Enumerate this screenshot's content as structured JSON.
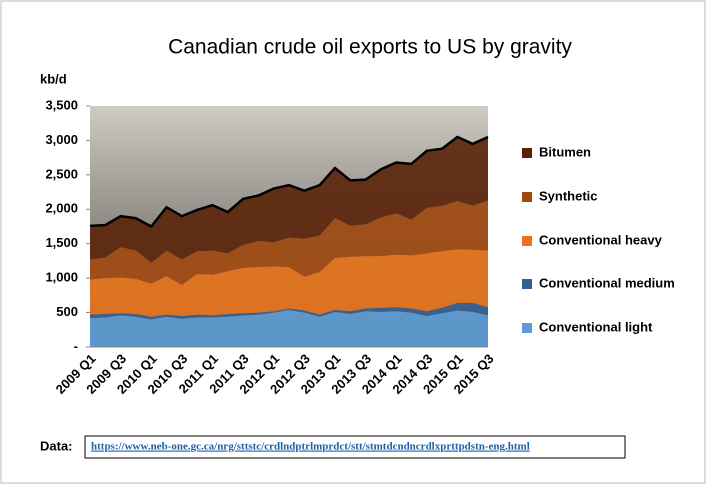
{
  "chart_data": {
    "type": "area",
    "stacked": true,
    "title": "Canadian crude oil exports to US by gravity",
    "y_label": "kb/d",
    "categories": [
      "2009 Q1",
      null,
      "2009 Q3",
      null,
      "2010 Q1",
      null,
      "2010 Q3",
      null,
      "2011 Q1",
      null,
      "2011 Q3",
      null,
      "2012 Q1",
      null,
      "2012 Q3",
      null,
      "2013 Q1",
      null,
      "2013 Q3",
      null,
      "2014 Q1",
      null,
      "2014 Q3",
      null,
      "2015 Q1",
      null,
      "2015 Q3"
    ],
    "series": [
      {
        "name": "Conventional light",
        "color": "#5b9bd5",
        "values": [
          420,
          430,
          460,
          440,
          400,
          440,
          410,
          430,
          430,
          440,
          460,
          470,
          500,
          540,
          500,
          440,
          510,
          480,
          520,
          510,
          520,
          500,
          450,
          490,
          530,
          510,
          460
        ]
      },
      {
        "name": "Conventional medium",
        "color": "#335f91",
        "values": [
          50,
          50,
          30,
          40,
          40,
          30,
          40,
          40,
          30,
          40,
          30,
          30,
          20,
          20,
          30,
          30,
          30,
          40,
          40,
          60,
          60,
          60,
          70,
          80,
          110,
          130,
          120
        ]
      },
      {
        "name": "Conventional heavy",
        "color": "#e8731a",
        "values": [
          510,
          520,
          520,
          510,
          480,
          560,
          450,
          590,
          590,
          620,
          660,
          660,
          650,
          600,
          490,
          620,
          750,
          790,
          760,
          750,
          760,
          770,
          840,
          820,
          780,
          770,
          820
        ]
      },
      {
        "name": "Synthetic",
        "color": "#a0490f",
        "values": [
          290,
          300,
          440,
          410,
          300,
          370,
          370,
          330,
          350,
          260,
          330,
          380,
          350,
          430,
          550,
          530,
          580,
          450,
          460,
          560,
          600,
          520,
          660,
          660,
          700,
          640,
          730
        ]
      },
      {
        "name": "Bitumen",
        "color": "#5a2309",
        "values": [
          490,
          470,
          450,
          470,
          530,
          630,
          630,
          600,
          660,
          600,
          670,
          660,
          780,
          760,
          700,
          730,
          730,
          660,
          650,
          700,
          740,
          810,
          830,
          830,
          930,
          900,
          920
        ]
      }
    ],
    "ylim": [
      0,
      3500
    ],
    "yticks": [
      {
        "value": 0,
        "label": "-"
      },
      500,
      {
        "value": 1000,
        "label": "1,000"
      },
      {
        "value": 1500,
        "label": "1,500"
      },
      {
        "value": 2000,
        "label": "2,000"
      },
      {
        "value": 2500,
        "label": "2,500"
      },
      {
        "value": 3000,
        "label": "3,000"
      },
      {
        "value": 3500,
        "label": "3,500"
      }
    ],
    "grid": false,
    "legend": "right",
    "source_label": "Data:",
    "source_url": "https://www.neb-one.gc.ca/nrg/sttstc/crdlndptrlmprdct/stt/stmtdcndncrdlxprttpdstn-eng.html"
  }
}
